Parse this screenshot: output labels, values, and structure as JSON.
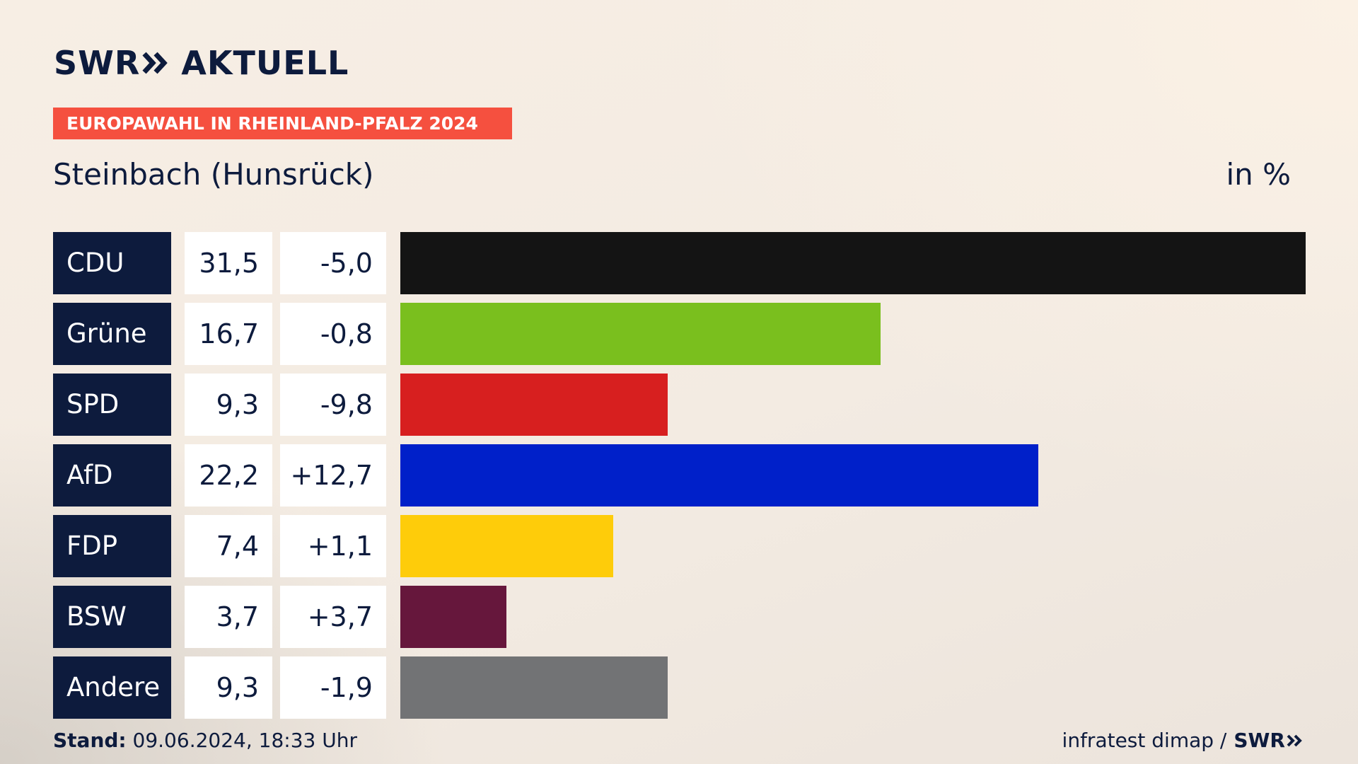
{
  "brand": {
    "logo_left": "SWR",
    "logo_right": "AKTUELL",
    "chevron_icon": "double-chevron-right-icon"
  },
  "header": {
    "badge": "EUROPAWAHL IN RHEINLAND-PFALZ 2024",
    "region": "Steinbach (Hunsrück)",
    "unit": "in %"
  },
  "colors": {
    "navy": "#0d1b3d",
    "badge": "#f5503f"
  },
  "chart_data": {
    "type": "bar",
    "orientation": "horizontal",
    "title": "Steinbach (Hunsrück)",
    "unit": "in %",
    "categories": [
      "CDU",
      "Grüne",
      "SPD",
      "AfD",
      "FDP",
      "BSW",
      "Andere"
    ],
    "values": [
      31.5,
      16.7,
      9.3,
      22.2,
      7.4,
      3.7,
      9.3
    ],
    "value_labels": [
      "31,5",
      "16,7",
      "9,3",
      "22,2",
      "7,4",
      "3,7",
      "9,3"
    ],
    "change_labels": [
      "-5,0",
      "-0,8",
      "-9,8",
      "+12,7",
      "+1,1",
      "+3,7",
      "-1,9"
    ],
    "changes": [
      -5.0,
      -0.8,
      -9.8,
      12.7,
      1.1,
      3.7,
      -1.9
    ],
    "bar_colors": [
      "#141414",
      "#7abf1e",
      "#d71f1f",
      "#0020c9",
      "#fecc0a",
      "#66173c",
      "#727375"
    ],
    "xlim": [
      0,
      31.5
    ]
  },
  "footer": {
    "stand_label": "Stand:",
    "stand_value": "09.06.2024, 18:33 Uhr",
    "source": "infratest dimap /",
    "source_brand": "SWR"
  }
}
